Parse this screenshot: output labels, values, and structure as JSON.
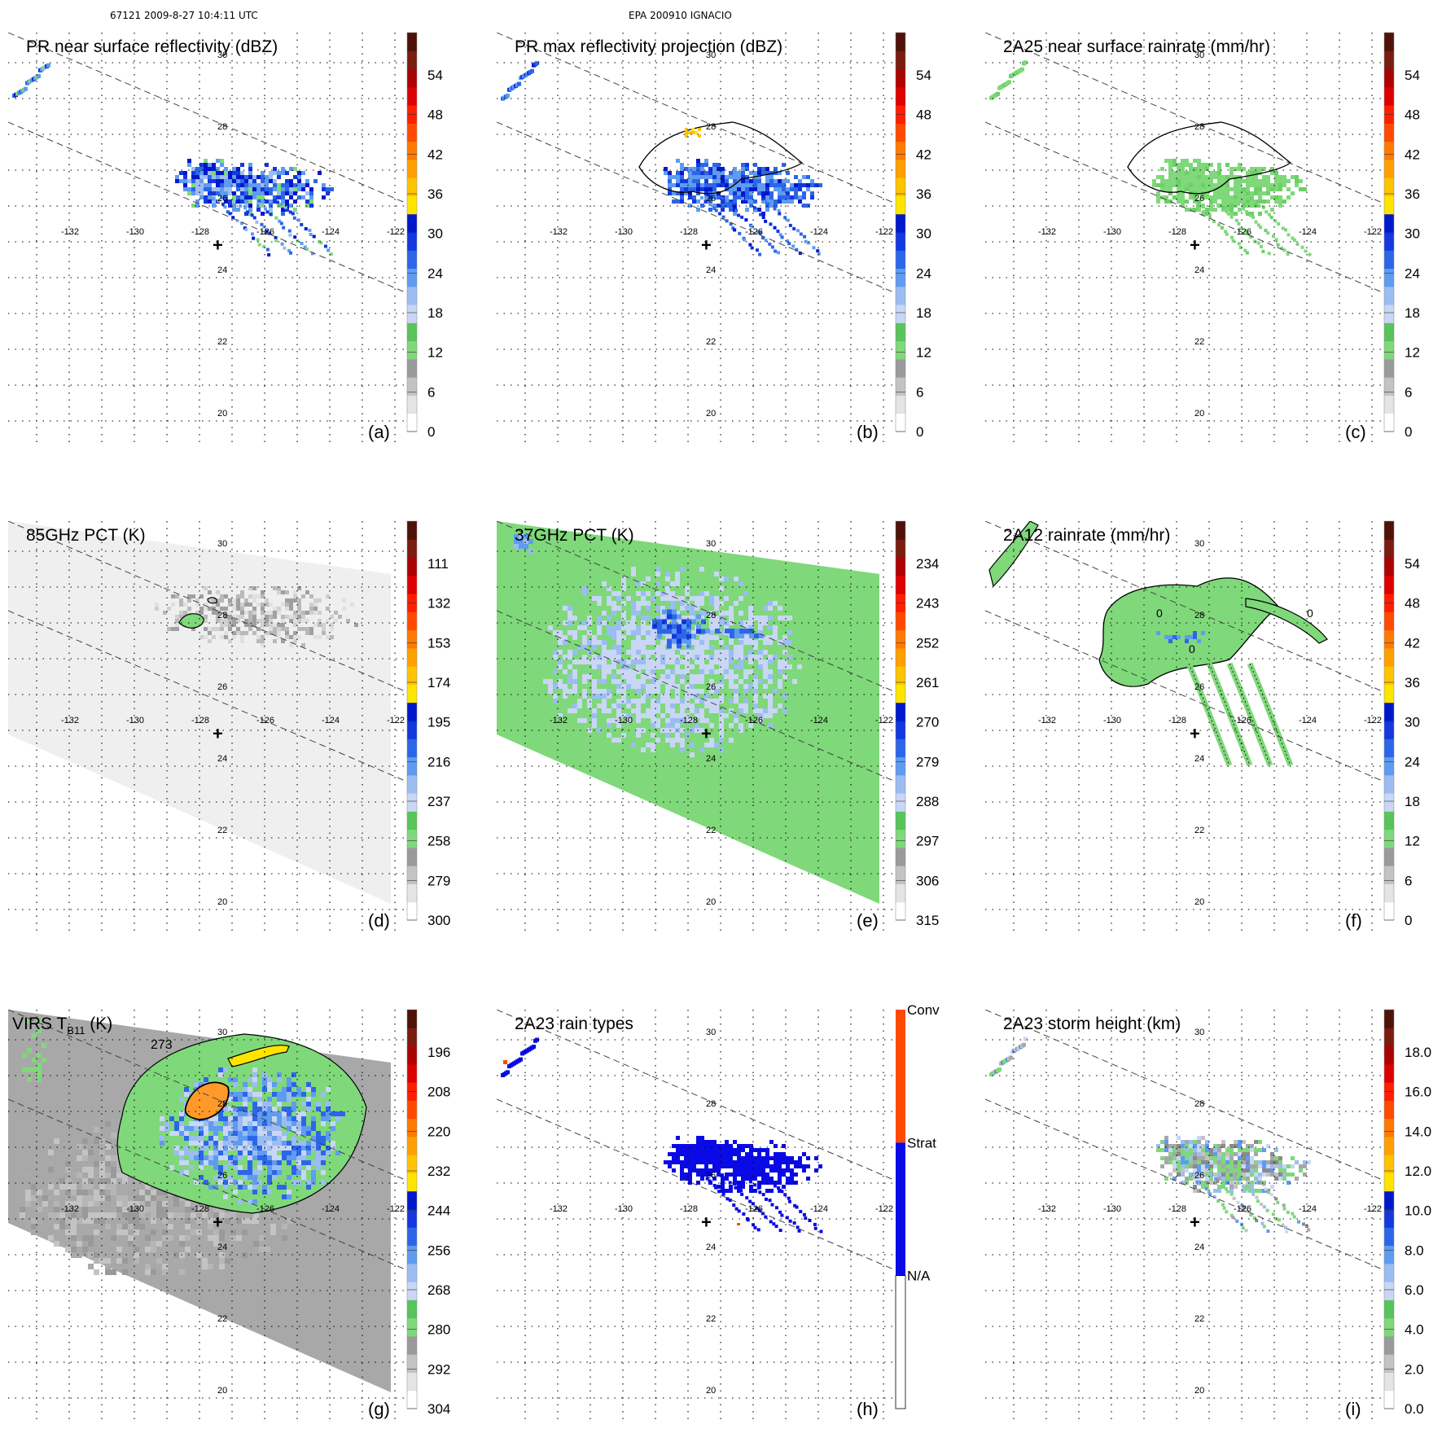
{
  "header": {
    "orbit_time": "67121 2009-8-27 10:4:11 UTC",
    "storm": "EPA 200910 IGNACIO"
  },
  "axes": {
    "lon_labels": [
      "-132",
      "-130",
      "-128",
      "-126",
      "-124",
      "-122"
    ],
    "lat_labels": [
      "30",
      "28",
      "26",
      "24",
      "22",
      "20"
    ]
  },
  "storm_center": {
    "lon": -127.4,
    "lat": 24.9,
    "symbol": "+"
  },
  "panels": [
    {
      "id": "a",
      "title": "PR near surface reflectivity (dBZ)",
      "letter": "(a)",
      "coverage": "pr",
      "legend": {
        "ticks": [
          "54",
          "48",
          "42",
          "36",
          "30",
          "24",
          "18",
          "12",
          "6",
          "0"
        ]
      }
    },
    {
      "id": "b",
      "title": "PR max reflectivity projection (dBZ)",
      "letter": "(b)",
      "coverage": "pr",
      "legend": {
        "ticks": [
          "54",
          "48",
          "42",
          "36",
          "30",
          "24",
          "18",
          "12",
          "6",
          "0"
        ]
      }
    },
    {
      "id": "c",
      "title": "2A25 near surface rainrate (mm/hr)",
      "letter": "(c)",
      "coverage": "pr",
      "legend": {
        "ticks": [
          "54",
          "48",
          "42",
          "36",
          "30",
          "24",
          "18",
          "12",
          "6",
          "0"
        ]
      }
    },
    {
      "id": "d",
      "title": "85GHz PCT (K)",
      "letter": "(d)",
      "coverage": "tmi",
      "legend": {
        "ticks": [
          "111",
          "132",
          "153",
          "174",
          "195",
          "216",
          "237",
          "258",
          "279",
          "300"
        ]
      }
    },
    {
      "id": "e",
      "title": "37GHz PCT (K)",
      "letter": "(e)",
      "coverage": "tmi",
      "legend": {
        "ticks": [
          "234",
          "243",
          "252",
          "261",
          "270",
          "279",
          "288",
          "297",
          "306",
          "315"
        ]
      }
    },
    {
      "id": "f",
      "title": "2A12 rainrate (mm/hr)",
      "letter": "(f)",
      "coverage": "tmi",
      "legend": {
        "ticks": [
          "54",
          "48",
          "42",
          "36",
          "30",
          "24",
          "18",
          "12",
          "6",
          "0"
        ]
      }
    },
    {
      "id": "g",
      "title_main": "VIRS T",
      "title_sub": "B11",
      "title_unit": " (K)",
      "contour_label": "273",
      "letter": "(g)",
      "coverage": "tmi",
      "legend": {
        "ticks": [
          "196",
          "208",
          "220",
          "232",
          "244",
          "256",
          "268",
          "280",
          "292",
          "304"
        ]
      }
    },
    {
      "id": "h",
      "title": "2A23 rain types",
      "letter": "(h)",
      "coverage": "pr",
      "legend": {
        "labels": [
          "Conv",
          "Strat",
          "N/A"
        ]
      }
    },
    {
      "id": "i",
      "title": "2A23 storm height (km)",
      "letter": "(i)",
      "coverage": "pr",
      "legend": {
        "ticks": [
          "18.0",
          "16.0",
          "14.0",
          "12.0",
          "10.0",
          "8.0",
          "6.0",
          "4.0",
          "2.0",
          "0.0"
        ]
      }
    }
  ],
  "colors": {
    "scale10": [
      "#ffffff",
      "#e4e4e4",
      "#c3c3c3",
      "#9a9a9a",
      "#7fd87a",
      "#57c55a",
      "#c9d6f5",
      "#9bbdf2",
      "#5f9bf0",
      "#2c66e8",
      "#1338e0",
      "#0018cc",
      "#ffe400",
      "#ffc400",
      "#ffa000",
      "#ff7a00",
      "#ff4a00",
      "#ff1e00",
      "#dd0000",
      "#b00000",
      "#7a1c10",
      "#4e1208"
    ],
    "rain_green": "#7fd87a",
    "rain_blue": "#2b5be6",
    "strat_blue": "#0a0ae6",
    "conv_orange": "#ff4a00",
    "virs_orange": "#ff9a2a",
    "virs_yellow": "#ffe400"
  }
}
